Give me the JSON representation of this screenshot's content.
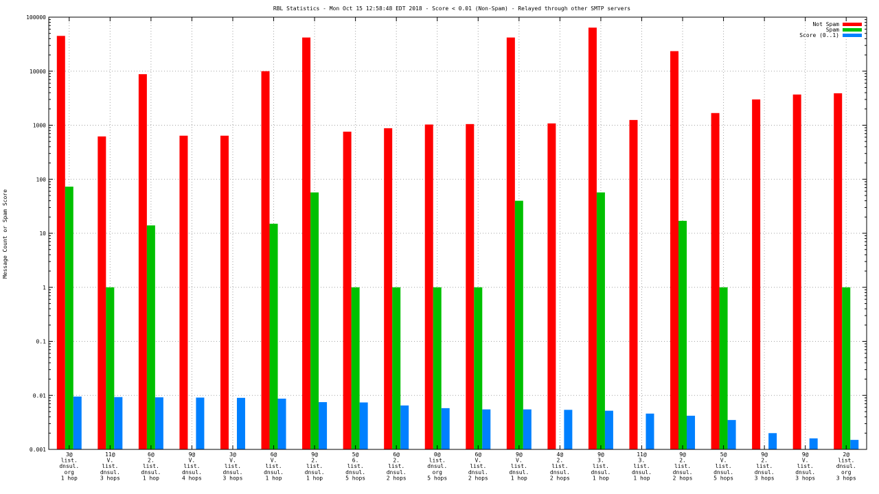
{
  "chart_data": {
    "type": "bar",
    "title": "RBL Statistics - Mon Oct 15 12:58:48 EDT 2018 - Score < 0.01 (Non-Spam) - Relayed through other SMTP servers",
    "ylabel": "Message Count or Spam Score",
    "xlabel": "",
    "yscale": "log",
    "ylim": [
      0.001,
      100000
    ],
    "yticks": [
      "0.001",
      "0.01",
      "0.1",
      "1",
      "10",
      "100",
      "1000",
      "10000",
      "100000"
    ],
    "grid": true,
    "legend_position": "top-right",
    "categories": [
      [
        "3@",
        "list.",
        "dnsul.",
        "org",
        "1 hop"
      ],
      [
        "11@",
        "V.",
        "list.",
        "dnsul.",
        "3 hops"
      ],
      [
        "6@",
        "2.",
        "list.",
        "dnsul.",
        "1 hop"
      ],
      [
        "9@",
        "V.",
        "list.",
        "dnsul.",
        "4 hops"
      ],
      [
        "3@",
        "V.",
        "list.",
        "dnsul.",
        "3 hops"
      ],
      [
        "6@",
        "V.",
        "list.",
        "dnsul.",
        "1 hop"
      ],
      [
        "9@",
        "2.",
        "list.",
        "dnsul.",
        "1 hop"
      ],
      [
        "5@",
        "6.",
        "list.",
        "dnsul.",
        "5 hops"
      ],
      [
        "6@",
        "2.",
        "list.",
        "dnsul.",
        "2 hops"
      ],
      [
        "0@",
        "list.",
        "dnsul.",
        "org",
        "5 hops"
      ],
      [
        "6@",
        "V.",
        "list.",
        "dnsul.",
        "2 hops"
      ],
      [
        "9@",
        "V.",
        "list.",
        "dnsul.",
        "1 hop"
      ],
      [
        "4@",
        "2.",
        "list.",
        "dnsul.",
        "2 hops"
      ],
      [
        "9@",
        "3.",
        "list.",
        "dnsul.",
        "1 hop"
      ],
      [
        "11@",
        "3.",
        "list.",
        "dnsul.",
        "1 hop"
      ],
      [
        "9@",
        "2.",
        "list.",
        "dnsul.",
        "2 hops"
      ],
      [
        "5@",
        "V.",
        "list.",
        "dnsul.",
        "5 hops"
      ],
      [
        "9@",
        "2.",
        "list.",
        "dnsul.",
        "3 hops"
      ],
      [
        "9@",
        "V.",
        "list.",
        "dnsul.",
        "3 hops"
      ],
      [
        "2@",
        "list.",
        "dnsul.",
        "org",
        "3 hops"
      ]
    ],
    "series": [
      {
        "name": "Not Spam",
        "color": "#ff0000",
        "values": [
          45000,
          620,
          8800,
          640,
          640,
          10000,
          42000,
          760,
          880,
          1030,
          1050,
          42000,
          1080,
          64000,
          1250,
          23500,
          1680,
          3000,
          3700,
          3900
        ]
      },
      {
        "name": "Spam",
        "color": "#00c000",
        "values": [
          73,
          1,
          14,
          0,
          0,
          15,
          57,
          1,
          1,
          1,
          1,
          40,
          0,
          57,
          0,
          17,
          1,
          0,
          0,
          1
        ]
      },
      {
        "name": "Score (0..1)",
        "color": "#0080ff",
        "values": [
          0.0095,
          0.0093,
          0.0092,
          0.0091,
          0.009,
          0.0087,
          0.0075,
          0.0074,
          0.0065,
          0.0058,
          0.0055,
          0.0055,
          0.0054,
          0.0052,
          0.0046,
          0.0042,
          0.0035,
          0.002,
          0.0016,
          0.0015
        ]
      }
    ]
  }
}
